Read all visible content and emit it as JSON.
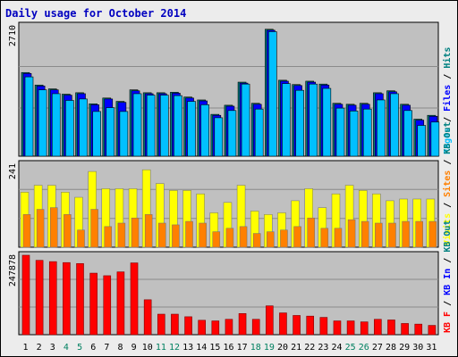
{
  "title": "Daily usage for October 2014",
  "colors": {
    "title": "#0000c0",
    "plot_bg": "#c0c0c0",
    "gridline": "#8a8a8a",
    "hits": "#008080",
    "files": "#0000ff",
    "pages": "#00c0ff",
    "visits": "#ffff00",
    "sites": "#ff8000",
    "kb_in": "#0000ff",
    "kb_out": "#008080",
    "kb_f": "#ff0000",
    "weekend_label": "#008060"
  },
  "chart_data": [
    {
      "type": "bar",
      "panel": "top",
      "ymax_label": "2710",
      "ylim": [
        0,
        2710
      ],
      "grid": true,
      "categories": [
        "1",
        "2",
        "3",
        "4",
        "5",
        "6",
        "7",
        "8",
        "9",
        "10",
        "11",
        "12",
        "13",
        "14",
        "15",
        "16",
        "17",
        "18",
        "19",
        "20",
        "21",
        "22",
        "23",
        "24",
        "25",
        "26",
        "27",
        "28",
        "29",
        "30",
        "31"
      ],
      "weekend_days": [
        "4",
        "5",
        "11",
        "12",
        "18",
        "19",
        "25",
        "26"
      ],
      "legend": [
        "Pages",
        "Files",
        "Hits"
      ],
      "series": [
        {
          "name": "Hits",
          "color_key": "hits",
          "values": [
            1740,
            1480,
            1400,
            1290,
            1320,
            1090,
            1210,
            1140,
            1380,
            1320,
            1320,
            1330,
            1230,
            1170,
            870,
            1060,
            1540,
            1100,
            2640,
            1580,
            1490,
            1560,
            1500,
            1100,
            1080,
            1100,
            1320,
            1360,
            1080,
            770,
            850
          ]
        },
        {
          "name": "Files",
          "color_key": "files",
          "values": [
            1720,
            1460,
            1380,
            1270,
            1300,
            1070,
            1190,
            1120,
            1360,
            1300,
            1300,
            1310,
            1210,
            1150,
            850,
            1040,
            1520,
            1080,
            2620,
            1560,
            1470,
            1540,
            1480,
            1080,
            1060,
            1080,
            1300,
            1340,
            1060,
            750,
            830
          ]
        },
        {
          "name": "Pages",
          "color_key": "pages",
          "values": [
            1650,
            1380,
            1300,
            1160,
            1190,
            930,
            1010,
            930,
            1300,
            1270,
            1270,
            1260,
            1140,
            1070,
            800,
            950,
            1500,
            980,
            2590,
            1510,
            1370,
            1500,
            1410,
            1000,
            940,
            980,
            1170,
            1300,
            950,
            640,
            710
          ]
        }
      ]
    },
    {
      "type": "bar",
      "panel": "middle",
      "ymax_label": "241",
      "ylim": [
        0,
        241
      ],
      "grid": true,
      "categories": [
        "1",
        "2",
        "3",
        "4",
        "5",
        "6",
        "7",
        "8",
        "9",
        "10",
        "11",
        "12",
        "13",
        "14",
        "15",
        "16",
        "17",
        "18",
        "19",
        "20",
        "21",
        "22",
        "23",
        "24",
        "25",
        "26",
        "27",
        "28",
        "29",
        "30",
        "31"
      ],
      "legend": [
        "Visits",
        "Sites",
        "KB Out"
      ],
      "series": [
        {
          "name": "Visits",
          "color_key": "visits",
          "values": [
            160,
            180,
            180,
            160,
            145,
            220,
            170,
            170,
            170,
            225,
            185,
            165,
            165,
            155,
            100,
            130,
            180,
            105,
            95,
            100,
            135,
            170,
            115,
            155,
            180,
            165,
            155,
            135,
            140,
            140,
            140
          ]
        },
        {
          "name": "Sites",
          "color_key": "sites",
          "values": [
            95,
            110,
            115,
            95,
            50,
            110,
            60,
            70,
            85,
            95,
            70,
            65,
            75,
            70,
            45,
            55,
            60,
            40,
            45,
            50,
            60,
            85,
            55,
            55,
            80,
            75,
            70,
            70,
            75,
            75,
            75
          ]
        }
      ]
    },
    {
      "type": "bar",
      "panel": "bottom",
      "ymax_label": "247878",
      "ylim": [
        0,
        247878
      ],
      "grid": true,
      "categories": [
        "1",
        "2",
        "3",
        "4",
        "5",
        "6",
        "7",
        "8",
        "9",
        "10",
        "11",
        "12",
        "13",
        "14",
        "15",
        "16",
        "17",
        "18",
        "19",
        "20",
        "21",
        "22",
        "23",
        "24",
        "25",
        "26",
        "27",
        "28",
        "29",
        "30",
        "31"
      ],
      "legend": [
        "KB F",
        "KB In",
        "KB Out"
      ],
      "series": [
        {
          "name": "KB F",
          "color_key": "kb_f",
          "values": [
            247878,
            232000,
            228000,
            225000,
            222000,
            192000,
            184000,
            196000,
            224000,
            109000,
            64000,
            64000,
            56000,
            45000,
            43000,
            48000,
            66000,
            48000,
            90000,
            68000,
            60000,
            58000,
            54000,
            43000,
            43000,
            40000,
            48000,
            46000,
            35000,
            33000,
            29000
          ]
        }
      ]
    }
  ]
}
